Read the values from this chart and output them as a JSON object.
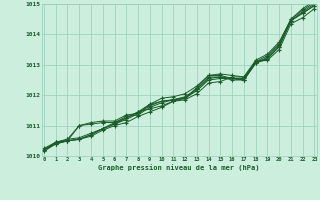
{
  "background_color": "#cceedd",
  "grid_color": "#99ccbb",
  "line_color": "#1a5c2a",
  "marker_color": "#1a5c2a",
  "xmin": 0,
  "xmax": 23,
  "ymin": 1010,
  "ymax": 1015,
  "yticks": [
    1010,
    1011,
    1012,
    1013,
    1014,
    1015
  ],
  "xticks": [
    0,
    1,
    2,
    3,
    4,
    5,
    6,
    7,
    8,
    9,
    10,
    11,
    12,
    13,
    14,
    15,
    16,
    17,
    18,
    19,
    20,
    21,
    22,
    23
  ],
  "xlabel": "Graphe pression niveau de la mer (hPa)",
  "series": [
    [
      1010.2,
      1010.4,
      1010.5,
      1010.55,
      1010.7,
      1010.9,
      1011.05,
      1011.2,
      1011.4,
      1011.65,
      1011.8,
      1011.85,
      1011.9,
      1012.2,
      1012.55,
      1012.6,
      1012.55,
      1012.5,
      1013.1,
      1013.2,
      1013.6,
      1014.45,
      1014.7,
      1014.95
    ],
    [
      1010.2,
      1010.45,
      1010.5,
      1011.0,
      1011.05,
      1011.1,
      1011.1,
      1011.3,
      1011.35,
      1011.6,
      1011.75,
      1011.85,
      1011.95,
      1012.2,
      1012.6,
      1012.6,
      1012.5,
      1012.5,
      1013.05,
      1013.25,
      1013.65,
      1014.45,
      1014.75,
      1015.0
    ],
    [
      1010.25,
      1010.45,
      1010.55,
      1011.0,
      1011.1,
      1011.15,
      1011.15,
      1011.35,
      1011.4,
      1011.7,
      1011.8,
      1011.85,
      1011.9,
      1012.25,
      1012.65,
      1012.65,
      1012.55,
      1012.55,
      1013.1,
      1013.3,
      1013.7,
      1014.5,
      1014.8,
      1015.05
    ],
    [
      1010.2,
      1010.45,
      1010.55,
      1010.6,
      1010.75,
      1010.9,
      1011.05,
      1011.25,
      1011.45,
      1011.55,
      1011.65,
      1011.8,
      1011.9,
      1012.15,
      1012.5,
      1012.55,
      1012.55,
      1012.5,
      1013.05,
      1013.2,
      1013.6,
      1014.45,
      1014.7,
      1014.95
    ],
    [
      1010.2,
      1010.4,
      1010.5,
      1010.55,
      1010.65,
      1010.85,
      1011.0,
      1011.1,
      1011.3,
      1011.45,
      1011.6,
      1011.8,
      1011.85,
      1012.05,
      1012.4,
      1012.45,
      1012.6,
      1012.6,
      1013.1,
      1013.15,
      1013.5,
      1014.35,
      1014.55,
      1014.85
    ],
    [
      1010.15,
      1010.4,
      1010.5,
      1010.55,
      1010.7,
      1010.9,
      1011.1,
      1011.25,
      1011.45,
      1011.7,
      1011.9,
      1011.95,
      1012.05,
      1012.3,
      1012.65,
      1012.7,
      1012.65,
      1012.6,
      1013.15,
      1013.35,
      1013.75,
      1014.5,
      1014.85,
      1015.1
    ]
  ]
}
